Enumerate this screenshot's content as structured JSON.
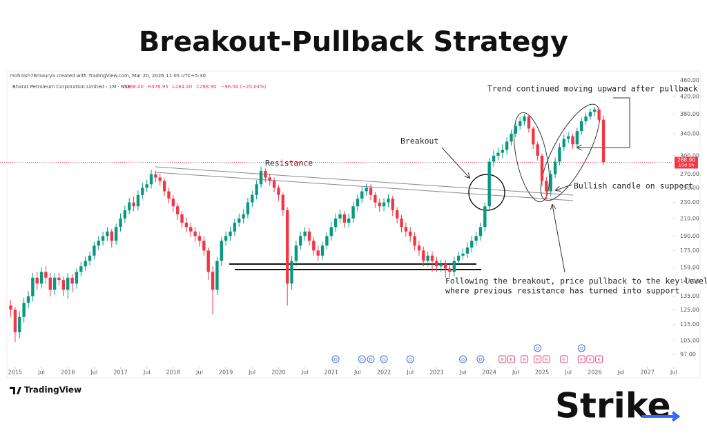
{
  "chart_data": {
    "type": "candlestick",
    "title": "Breakout-Pullback Strategy",
    "attribution": "mohnish76maurya created with TradingView.com, Mar 20, 2026 11:05 UTC+5:30",
    "symbol": "Bharat Petroleum Corporation Limited · 1M · NSE",
    "ohlc_header": [
      "O368.00",
      "H376.95",
      "L284.40",
      "C288.90",
      "−96.50 (−25.04%)"
    ],
    "up_color": "#089981",
    "down_color": "#f23645",
    "log_scale": true,
    "ylim": [
      94,
      476
    ],
    "yticks": [
      {
        "value": 460,
        "label": "460.00"
      },
      {
        "value": 420,
        "label": "420.00"
      },
      {
        "value": 380,
        "label": "380.00"
      },
      {
        "value": 340,
        "label": "340.00"
      },
      {
        "value": 300,
        "label": "300.00"
      },
      {
        "value": 270,
        "label": "270.00"
      },
      {
        "value": 250,
        "label": "250.00"
      },
      {
        "value": 230,
        "label": "230.00"
      },
      {
        "value": 210,
        "label": "210.00"
      },
      {
        "value": 190,
        "label": "190.00"
      },
      {
        "value": 175,
        "label": "175.00"
      },
      {
        "value": 159,
        "label": "159.00"
      },
      {
        "value": 147,
        "label": "147.00"
      },
      {
        "value": 135,
        "label": "135.00"
      },
      {
        "value": 125,
        "label": "125.00"
      },
      {
        "value": 115,
        "label": "115.00"
      },
      {
        "value": 105,
        "label": "105.00"
      },
      {
        "value": 97,
        "label": "97.00"
      }
    ],
    "xlim": [
      2014.87,
      2027.49
    ],
    "xticks": [
      2015,
      {
        "value": 2015.5,
        "label": "Jul"
      },
      2016,
      {
        "value": 2016.5,
        "label": "Jul"
      },
      2017,
      {
        "value": 2017.5,
        "label": "Jul"
      },
      2018,
      {
        "value": 2018.5,
        "label": "Jul"
      },
      2019,
      {
        "value": 2019.5,
        "label": "Jul"
      },
      2020,
      {
        "value": 2020.5,
        "label": "Jul"
      },
      2021,
      {
        "value": 2021.5,
        "label": "Jul"
      },
      2022,
      {
        "value": 2022.5,
        "label": "Jul"
      },
      2023,
      {
        "value": 2023.5,
        "label": "Jul"
      },
      2024,
      {
        "value": 2024.5,
        "label": "Jul"
      },
      2025,
      {
        "value": 2025.5,
        "label": "Jul"
      },
      2026,
      {
        "value": 2026.5,
        "label": "Jul"
      },
      2027,
      {
        "value": 2027.5,
        "label": "Jul"
      }
    ],
    "last_price": {
      "value": 288.9,
      "label": "288.90"
    },
    "countdown": "10d 5h",
    "x": [
      "2014-12",
      "2015-01",
      "2015-02",
      "2015-03",
      "2015-04",
      "2015-05",
      "2015-06",
      "2015-07",
      "2015-08",
      "2015-09",
      "2015-10",
      "2015-11",
      "2015-12",
      "2016-01",
      "2016-02",
      "2016-03",
      "2016-04",
      "2016-05",
      "2016-06",
      "2016-07",
      "2016-08",
      "2016-09",
      "2016-10",
      "2016-11",
      "2016-12",
      "2017-01",
      "2017-02",
      "2017-03",
      "2017-04",
      "2017-05",
      "2017-06",
      "2017-07",
      "2017-08",
      "2017-09",
      "2017-10",
      "2017-11",
      "2017-12",
      "2018-01",
      "2018-02",
      "2018-03",
      "2018-04",
      "2018-05",
      "2018-06",
      "2018-07",
      "2018-08",
      "2018-09",
      "2018-10",
      "2018-11",
      "2018-12",
      "2019-01",
      "2019-02",
      "2019-03",
      "2019-04",
      "2019-05",
      "2019-06",
      "2019-07",
      "2019-08",
      "2019-09",
      "2019-10",
      "2019-11",
      "2019-12",
      "2020-01",
      "2020-02",
      "2020-03",
      "2020-04",
      "2020-05",
      "2020-06",
      "2020-07",
      "2020-08",
      "2020-09",
      "2020-10",
      "2020-11",
      "2020-12",
      "2021-01",
      "2021-02",
      "2021-03",
      "2021-04",
      "2021-05",
      "2021-06",
      "2021-07",
      "2021-08",
      "2021-09",
      "2021-10",
      "2021-11",
      "2021-12",
      "2022-01",
      "2022-02",
      "2022-03",
      "2022-04",
      "2022-05",
      "2022-06",
      "2022-07",
      "2022-08",
      "2022-09",
      "2022-10",
      "2022-11",
      "2022-12",
      "2023-01",
      "2023-02",
      "2023-03",
      "2023-04",
      "2023-05",
      "2023-06",
      "2023-07",
      "2023-08",
      "2023-09",
      "2023-10",
      "2023-11",
      "2023-12",
      "2024-01",
      "2024-02",
      "2024-03",
      "2024-04",
      "2024-05",
      "2024-06",
      "2024-07",
      "2024-08",
      "2024-09",
      "2024-10",
      "2024-11",
      "2024-12",
      "2025-01",
      "2025-02",
      "2025-03",
      "2025-04",
      "2025-05",
      "2025-06",
      "2025-07",
      "2025-08",
      "2025-09",
      "2025-10",
      "2025-11",
      "2025-12",
      "2026-01",
      "2026-02",
      "2026-03"
    ],
    "open": [
      128,
      125,
      110,
      120,
      130,
      135,
      150,
      145,
      155,
      150,
      140,
      150,
      148,
      140,
      150,
      145,
      155,
      160,
      165,
      170,
      180,
      185,
      190,
      195,
      185,
      200,
      210,
      220,
      230,
      225,
      240,
      250,
      255,
      270,
      265,
      260,
      245,
      235,
      225,
      215,
      205,
      200,
      195,
      190,
      185,
      175,
      155,
      140,
      165,
      185,
      190,
      195,
      205,
      210,
      215,
      230,
      240,
      255,
      275,
      265,
      260,
      250,
      240,
      220,
      145,
      165,
      180,
      190,
      195,
      185,
      175,
      170,
      180,
      190,
      200,
      210,
      215,
      205,
      210,
      225,
      235,
      245,
      250,
      240,
      230,
      225,
      230,
      235,
      220,
      210,
      200,
      195,
      190,
      180,
      175,
      165,
      170,
      165,
      160,
      162,
      158,
      155,
      165,
      170,
      172,
      178,
      185,
      190,
      200,
      225,
      290,
      300,
      305,
      310,
      325,
      340,
      355,
      365,
      375,
      350,
      320,
      300,
      260,
      245,
      270,
      290,
      315,
      330,
      335,
      320,
      345,
      365,
      375,
      385,
      390,
      368
    ],
    "high": [
      132,
      127,
      124,
      134,
      139,
      154,
      155,
      159,
      160,
      154,
      154,
      154,
      151,
      154,
      153,
      158,
      164,
      169,
      174,
      184,
      190,
      195,
      200,
      198,
      204,
      216,
      226,
      236,
      238,
      246,
      257,
      262,
      277,
      276,
      271,
      264,
      250,
      240,
      229,
      219,
      211,
      205,
      200,
      195,
      190,
      178,
      160,
      169,
      189,
      195,
      200,
      210,
      216,
      221,
      236,
      246,
      261,
      282,
      279,
      271,
      265,
      254,
      243,
      224,
      170,
      185,
      195,
      200,
      199,
      189,
      180,
      184,
      194,
      206,
      216,
      221,
      219,
      216,
      231,
      241,
      251,
      256,
      255,
      244,
      235,
      236,
      241,
      239,
      224,
      214,
      205,
      200,
      194,
      185,
      179,
      174,
      174,
      169,
      166,
      166,
      162,
      169,
      174,
      177,
      183,
      190,
      195,
      205,
      230,
      296,
      310,
      315,
      320,
      333,
      348,
      363,
      373,
      380,
      378,
      354,
      325,
      304,
      266,
      276,
      297,
      322,
      338,
      343,
      340,
      352,
      372,
      383,
      392,
      396,
      393,
      376.95
    ],
    "low": [
      120,
      104,
      106,
      116,
      126,
      131,
      140,
      141,
      145,
      135,
      136,
      143,
      135,
      133,
      138,
      141,
      151,
      156,
      161,
      166,
      176,
      180,
      185,
      178,
      181,
      195,
      205,
      215,
      219,
      220,
      234,
      244,
      249,
      258,
      253,
      239,
      229,
      218,
      208,
      199,
      194,
      189,
      184,
      179,
      170,
      148,
      122,
      136,
      160,
      180,
      185,
      190,
      200,
      204,
      210,
      224,
      234,
      250,
      258,
      253,
      244,
      232,
      213,
      128,
      140,
      160,
      176,
      185,
      180,
      170,
      165,
      166,
      176,
      185,
      195,
      204,
      199,
      200,
      205,
      219,
      229,
      239,
      233,
      223,
      218,
      219,
      224,
      213,
      204,
      194,
      189,
      184,
      175,
      170,
      160,
      160,
      155,
      155,
      155,
      150,
      150,
      151,
      161,
      166,
      168,
      173,
      180,
      185,
      195,
      220,
      282,
      292,
      296,
      302,
      318,
      333,
      348,
      356,
      342,
      312,
      292,
      252,
      234,
      238,
      264,
      284,
      308,
      322,
      312,
      315,
      338,
      358,
      368,
      375,
      360,
      284.4
    ],
    "close": [
      125,
      110,
      120,
      130,
      135,
      150,
      145,
      155,
      150,
      140,
      150,
      148,
      140,
      150,
      145,
      155,
      160,
      165,
      170,
      180,
      185,
      190,
      195,
      185,
      200,
      210,
      220,
      230,
      225,
      240,
      250,
      255,
      270,
      265,
      260,
      245,
      235,
      225,
      215,
      205,
      200,
      195,
      190,
      185,
      175,
      155,
      140,
      165,
      185,
      190,
      195,
      205,
      210,
      215,
      230,
      240,
      255,
      275,
      265,
      260,
      250,
      240,
      220,
      145,
      165,
      180,
      190,
      195,
      185,
      175,
      170,
      180,
      190,
      200,
      210,
      215,
      205,
      210,
      225,
      235,
      245,
      250,
      240,
      230,
      225,
      230,
      235,
      220,
      210,
      200,
      195,
      190,
      180,
      175,
      165,
      170,
      165,
      160,
      162,
      158,
      155,
      165,
      170,
      172,
      178,
      185,
      190,
      200,
      225,
      290,
      300,
      305,
      310,
      325,
      340,
      355,
      365,
      375,
      350,
      320,
      300,
      260,
      245,
      270,
      290,
      315,
      330,
      335,
      320,
      345,
      365,
      375,
      385,
      390,
      368,
      288.9
    ],
    "events": [
      {
        "x": "2021-02",
        "label": "D"
      },
      {
        "x": "2021-08",
        "label": "D"
      },
      {
        "x": "2021-10",
        "label": "D"
      },
      {
        "x": "2022-01",
        "label": "D"
      },
      {
        "x": "2022-07",
        "label": "D"
      },
      {
        "x": "2023-07",
        "label": "D"
      },
      {
        "x": "2023-11",
        "label": "D"
      },
      {
        "x": "2024-04",
        "label": "E"
      },
      {
        "x": "2024-06",
        "label": "E"
      },
      {
        "x": "2024-09",
        "label": "E"
      },
      {
        "x": "2024-12",
        "label": "E"
      },
      {
        "x": "2025-02",
        "label": "E"
      },
      {
        "x": "2025-06",
        "label": "E"
      },
      {
        "x": "2025-10",
        "label": "E"
      },
      {
        "x": "2025-12",
        "label": "E"
      },
      {
        "x": "2026-02",
        "label": "E"
      },
      {
        "x": "2024-12",
        "label": "D",
        "row": 2
      },
      {
        "x": "2025-10",
        "label": "D",
        "row": 2
      }
    ],
    "annotations": [
      "Trend continued moving upward after pullback",
      "Breakout",
      "Resistance",
      "Bullish candle on support",
      "Following the breakout, price pullback to the key level,",
      "where previous resistance has turned into support"
    ]
  },
  "footer": {
    "platform": "TradingView",
    "brand": "Strike"
  }
}
